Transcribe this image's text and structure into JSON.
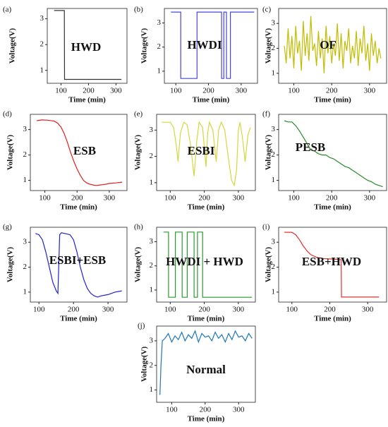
{
  "chart_data": [
    {
      "type": "line",
      "label": "(a)",
      "annotation": "HWD",
      "xlabel": "Time (min)",
      "ylabel": "Voltage(V)",
      "xlim": [
        50,
        340
      ],
      "ylim": [
        0.5,
        3.4
      ],
      "xticks": [
        100,
        200,
        300
      ],
      "yticks": [
        1,
        2,
        3
      ],
      "color": "#333333",
      "x": [
        75,
        112,
        113,
        320
      ],
      "values": [
        3.32,
        3.32,
        0.65,
        0.65
      ]
    },
    {
      "type": "line",
      "label": "(b)",
      "annotation": "HWDI",
      "xlabel": "Time (min)",
      "ylabel": "Voltage(V)",
      "xlim": [
        65,
        350
      ],
      "ylim": [
        0.5,
        3.6
      ],
      "xticks": [
        100,
        200,
        300
      ],
      "yticks": [
        1,
        2,
        3
      ],
      "color": "#4646d8",
      "x": [
        85,
        115,
        115,
        165,
        165,
        240,
        240,
        247,
        247,
        255,
        255,
        267,
        267,
        340
      ],
      "values": [
        3.45,
        3.45,
        0.7,
        0.7,
        3.45,
        3.45,
        0.7,
        0.7,
        3.45,
        3.45,
        0.7,
        0.7,
        3.45,
        3.45
      ]
    },
    {
      "type": "line",
      "label": "(c)",
      "annotation": "OF",
      "xlabel": "Time (min)",
      "ylabel": "Voltage(V)",
      "xlim": [
        60,
        345
      ],
      "ylim": [
        0.6,
        3.6
      ],
      "xticks": [
        100,
        200,
        300
      ],
      "yticks": [
        1,
        2,
        3
      ],
      "color": "#c2bc00",
      "x": [
        75,
        80,
        85,
        90,
        95,
        100,
        105,
        110,
        115,
        120,
        125,
        130,
        135,
        140,
        145,
        150,
        155,
        160,
        165,
        170,
        175,
        180,
        185,
        190,
        195,
        200,
        205,
        210,
        215,
        220,
        225,
        230,
        235,
        240,
        245,
        250,
        255,
        260,
        265,
        270,
        275,
        280,
        285,
        290,
        295,
        300,
        305,
        310,
        315,
        320,
        325,
        330
      ],
      "values": [
        2.1,
        1.4,
        2.8,
        1.6,
        2.5,
        1.2,
        2.9,
        1.8,
        2.3,
        1.1,
        3.1,
        1.7,
        2.6,
        1.5,
        3.3,
        1.9,
        2.2,
        1.3,
        2.7,
        1.6,
        2.4,
        1.0,
        2.9,
        1.8,
        2.5,
        1.4,
        2.2,
        1.7,
        3.0,
        1.5,
        2.6,
        1.2,
        2.3,
        1.9,
        2.8,
        1.4,
        2.1,
        1.6,
        2.7,
        1.3,
        2.4,
        1.8,
        2.9,
        1.5,
        2.2,
        1.1,
        2.6,
        1.7,
        2.3,
        1.4,
        2.0,
        1.6
      ]
    },
    {
      "type": "line",
      "label": "(d)",
      "annotation": "ESB",
      "xlabel": "Time (min)",
      "ylabel": "Voltage(V)",
      "xlim": [
        55,
        355
      ],
      "ylim": [
        0.6,
        3.6
      ],
      "xticks": [
        100,
        200,
        300
      ],
      "yticks": [
        1,
        2,
        3
      ],
      "color": "#e02020",
      "x": [
        75,
        90,
        110,
        130,
        140,
        150,
        160,
        170,
        180,
        190,
        200,
        210,
        220,
        230,
        240,
        250,
        260,
        270,
        280,
        290,
        300,
        320,
        340
      ],
      "values": [
        3.35,
        3.38,
        3.37,
        3.33,
        3.25,
        3.1,
        2.85,
        2.5,
        2.1,
        1.75,
        1.45,
        1.2,
        1.0,
        0.9,
        0.85,
        0.82,
        0.8,
        0.82,
        0.83,
        0.85,
        0.88,
        0.9,
        0.93
      ]
    },
    {
      "type": "line",
      "label": "(e)",
      "annotation": "ESBI",
      "xlabel": "Time (min)",
      "ylabel": "Voltage(V)",
      "xlim": [
        60,
        350
      ],
      "ylim": [
        0.7,
        3.6
      ],
      "xticks": [
        100,
        200,
        300
      ],
      "yticks": [
        1,
        2,
        3
      ],
      "color": "#d6d640",
      "x": [
        75,
        100,
        110,
        118,
        123,
        130,
        140,
        150,
        160,
        170,
        178,
        185,
        195,
        205,
        210,
        215,
        225,
        235,
        242,
        250,
        260,
        270,
        280,
        288,
        295,
        300,
        305,
        312,
        320,
        328,
        335
      ],
      "values": [
        3.3,
        3.3,
        3.1,
        2.4,
        1.8,
        2.9,
        3.3,
        3.2,
        2.4,
        1.25,
        2.6,
        3.3,
        3.1,
        1.6,
        2.9,
        3.3,
        3.0,
        1.8,
        3.0,
        3.3,
        3.0,
        2.0,
        1.1,
        0.9,
        1.5,
        3.0,
        3.3,
        2.7,
        1.8,
        2.8,
        3.1
      ]
    },
    {
      "type": "line",
      "label": "(f)",
      "annotation": "PESB",
      "xlabel": "Time (min)",
      "ylabel": "Voltage(V)",
      "xlim": [
        60,
        345
      ],
      "ylim": [
        0.6,
        3.6
      ],
      "xticks": [
        100,
        200,
        300
      ],
      "yticks": [
        1,
        2,
        3
      ],
      "color": "#2a8a2a",
      "x": [
        75,
        85,
        95,
        105,
        115,
        125,
        135,
        145,
        155,
        165,
        175,
        185,
        195,
        205,
        215,
        225,
        235,
        245,
        255,
        265,
        275,
        285,
        295,
        305,
        315,
        325,
        335
      ],
      "values": [
        3.35,
        3.3,
        3.3,
        3.15,
        2.95,
        2.7,
        2.45,
        2.2,
        2.15,
        2.05,
        2.0,
        2.0,
        1.9,
        1.85,
        1.75,
        1.65,
        1.55,
        1.5,
        1.4,
        1.3,
        1.2,
        1.1,
        1.0,
        0.95,
        0.85,
        0.8,
        0.75
      ]
    },
    {
      "type": "line",
      "label": "(g)",
      "annotation": "ESBI+ESB",
      "xlabel": "Time (min)",
      "ylabel": "Voltage(V)",
      "xlim": [
        75,
        355
      ],
      "ylim": [
        0.6,
        3.6
      ],
      "xticks": [
        100,
        200,
        300
      ],
      "yticks": [
        1,
        2,
        3
      ],
      "color": "#2020d0",
      "x": [
        90,
        100,
        110,
        120,
        130,
        140,
        150,
        155,
        160,
        165,
        175,
        190,
        200,
        210,
        220,
        230,
        240,
        250,
        260,
        270,
        280,
        300,
        320,
        340
      ],
      "values": [
        3.35,
        3.3,
        3.1,
        2.6,
        2.0,
        1.4,
        1.05,
        0.95,
        3.3,
        3.38,
        3.35,
        3.3,
        3.1,
        2.6,
        2.0,
        1.5,
        1.15,
        0.95,
        0.85,
        0.8,
        0.85,
        0.9,
        1.0,
        1.05
      ]
    },
    {
      "type": "line",
      "label": "(h)",
      "annotation": "HWDI + HWD",
      "xlabel": "Time (min)",
      "ylabel": "Voltage(V)",
      "xlim": [
        60,
        350
      ],
      "ylim": [
        0.5,
        3.6
      ],
      "xticks": [
        100,
        200,
        300
      ],
      "yticks": [
        1,
        2,
        3
      ],
      "color": "#2a9a2a",
      "x": [
        80,
        95,
        95,
        115,
        115,
        135,
        135,
        150,
        150,
        170,
        170,
        180,
        180,
        195,
        195,
        340
      ],
      "values": [
        3.4,
        3.4,
        0.7,
        0.7,
        3.4,
        3.4,
        0.7,
        0.7,
        3.4,
        3.4,
        0.7,
        0.7,
        3.4,
        3.4,
        0.7,
        0.7
      ]
    },
    {
      "type": "line",
      "label": "(i)",
      "annotation": "ESB+HWD",
      "xlabel": "Time (min)",
      "ylabel": "Voltage(V)",
      "xlim": [
        65,
        350
      ],
      "ylim": [
        0.6,
        3.6
      ],
      "xticks": [
        100,
        200,
        300
      ],
      "yticks": [
        1,
        2,
        3
      ],
      "color": "#e03030",
      "x": [
        80,
        100,
        110,
        120,
        130,
        140,
        150,
        165,
        180,
        200,
        230,
        231,
        330
      ],
      "values": [
        3.4,
        3.4,
        3.3,
        3.1,
        2.85,
        2.65,
        2.5,
        2.4,
        2.35,
        2.33,
        2.3,
        0.8,
        0.8
      ]
    },
    {
      "type": "line",
      "label": "(j)",
      "annotation": "Normal",
      "xlabel": "Time (min)",
      "ylabel": "Voltage(V)",
      "xlim": [
        55,
        350
      ],
      "ylim": [
        0.5,
        3.6
      ],
      "xticks": [
        100,
        200,
        300
      ],
      "yticks": [
        1,
        2,
        3
      ],
      "color": "#1f77b4",
      "x": [
        65,
        68,
        72,
        80,
        90,
        100,
        110,
        120,
        130,
        140,
        150,
        160,
        170,
        180,
        190,
        200,
        210,
        220,
        230,
        240,
        250,
        260,
        270,
        280,
        290,
        300,
        310,
        320,
        330,
        340
      ],
      "values": [
        0.8,
        2.0,
        3.0,
        3.1,
        3.3,
        2.95,
        3.2,
        3.05,
        3.35,
        3.0,
        3.25,
        3.1,
        3.4,
        2.95,
        3.3,
        3.15,
        3.2,
        3.0,
        3.35,
        3.1,
        3.25,
        2.95,
        3.3,
        3.05,
        3.4,
        3.15,
        3.2,
        3.0,
        3.3,
        3.1
      ]
    }
  ]
}
